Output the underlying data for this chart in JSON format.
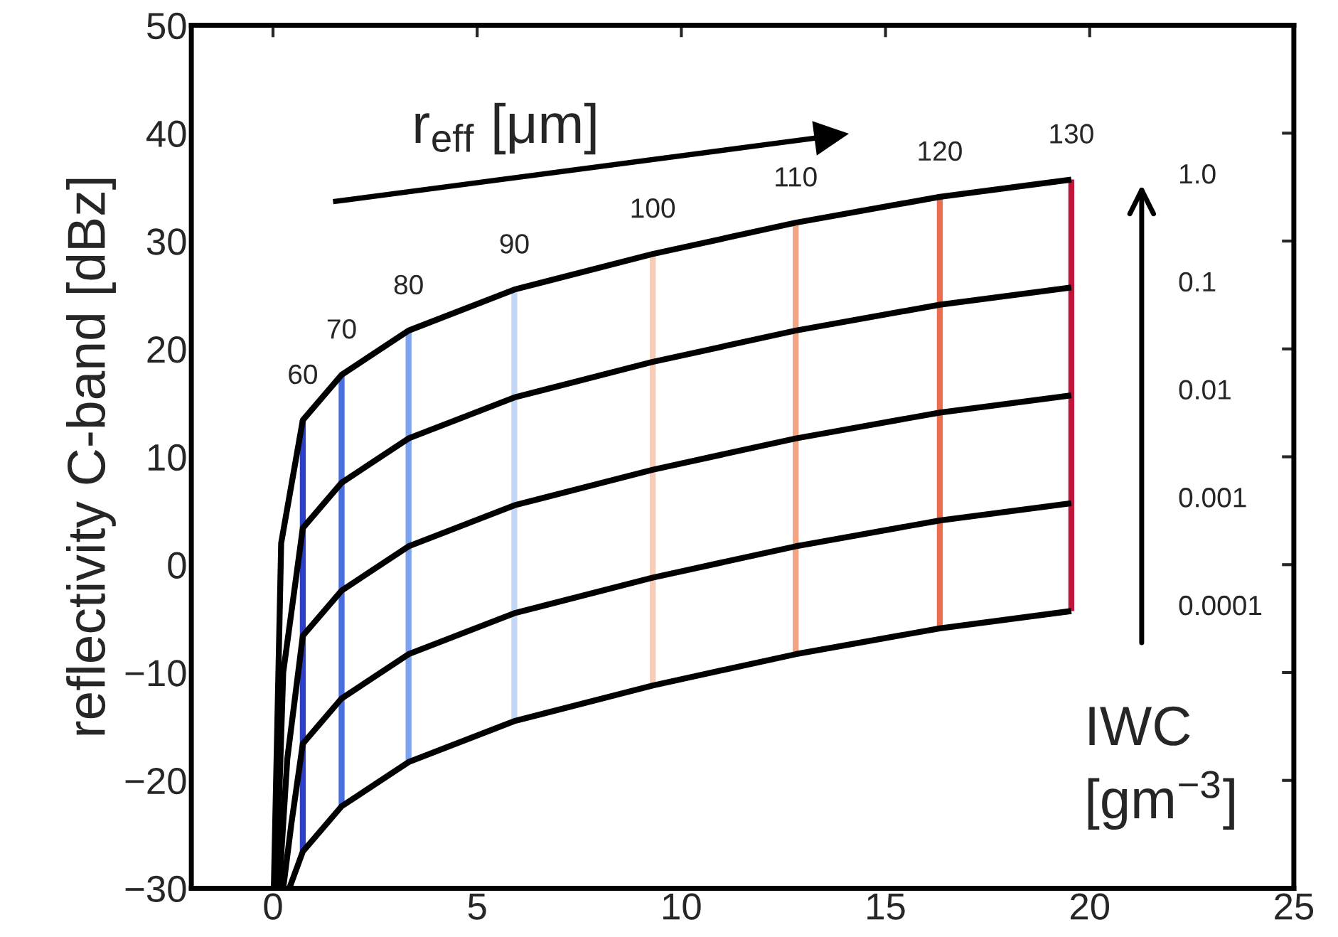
{
  "chart_data": {
    "type": "line",
    "ylabel": "reflectivity C-band [dBz]",
    "annotations": [
      "r$_{eff}$ [μm]",
      "IWC [gm$^{−3}$]",
      "1.0",
      "0.1",
      "0.01",
      "0.001",
      "0.0001",
      {
        "text": "60",
        "x": 0.73,
        "y": 13.4
      },
      {
        "text": "70",
        "x": 1.68,
        "y": 17.6
      },
      {
        "text": "80",
        "x": 3.32,
        "y": 21.7
      },
      {
        "text": "90",
        "x": 5.91,
        "y": 25.5
      },
      {
        "text": "100",
        "x": 9.3,
        "y": 28.8
      },
      {
        "text": "110",
        "x": 12.8,
        "y": 31.7
      },
      {
        "text": "120",
        "x": 16.33,
        "y": 34.1
      },
      {
        "text": "130",
        "x": 19.55,
        "y": 35.7
      }
    ],
    "xlim": [
      -2,
      25
    ],
    "xticks": [
      0,
      5,
      10,
      15,
      20,
      25
    ],
    "ylim": [
      -30,
      50
    ],
    "yticks": [
      {
        "value": -30,
        "label": "−30"
      },
      {
        "value": -20,
        "label": "−20"
      },
      {
        "value": -10,
        "label": "−10"
      },
      0,
      10,
      20,
      30,
      40,
      50
    ],
    "grid": false,
    "legend": false,
    "marker": "none",
    "line_style": "solid",
    "series": [
      {
        "color": "#000000",
        "x": [
          0.02,
          0.2,
          0.73,
          1.68,
          3.32,
          5.91,
          9.3,
          12.8,
          16.33,
          19.55
        ],
        "values": [
          -30,
          2,
          13.4,
          17.6,
          21.7,
          25.5,
          28.8,
          31.7,
          34.1,
          35.7
        ]
      },
      {
        "color": "#000000",
        "x": [
          0.08,
          0.25,
          0.73,
          1.68,
          3.32,
          5.91,
          9.3,
          12.8,
          16.33,
          19.55
        ],
        "values": [
          -30,
          -10,
          3.4,
          7.6,
          11.7,
          15.5,
          18.8,
          21.7,
          24.1,
          25.7
        ]
      },
      {
        "color": "#000000",
        "x": [
          0.15,
          0.35,
          0.73,
          1.68,
          3.32,
          5.91,
          9.3,
          12.8,
          16.33,
          19.55
        ],
        "values": [
          -30,
          -18,
          -6.6,
          -2.4,
          1.7,
          5.5,
          8.8,
          11.7,
          14.1,
          15.7
        ]
      },
      {
        "color": "#000000",
        "x": [
          0.25,
          0.45,
          0.73,
          1.68,
          3.32,
          5.91,
          9.3,
          12.8,
          16.33,
          19.55
        ],
        "values": [
          -30,
          -24,
          -16.6,
          -12.4,
          -8.3,
          -4.5,
          -1.2,
          1.7,
          4.1,
          5.7
        ]
      },
      {
        "color": "#000000",
        "x": [
          0.4,
          0.73,
          1.68,
          3.32,
          5.91,
          9.3,
          12.8,
          16.33,
          19.55
        ],
        "values": [
          -30,
          -26.6,
          -22.4,
          -18.3,
          -14.5,
          -11.2,
          -8.3,
          -5.9,
          -4.3
        ]
      },
      {
        "color": "#2b3fc7",
        "x": [
          0.73,
          0.73
        ],
        "values": [
          -26.6,
          13.4
        ]
      },
      {
        "color": "#4a6ee0",
        "x": [
          1.68,
          1.68
        ],
        "values": [
          -22.4,
          17.6
        ]
      },
      {
        "color": "#7ea4f0",
        "x": [
          3.32,
          3.32
        ],
        "values": [
          -18.3,
          21.7
        ]
      },
      {
        "color": "#c4d6f5",
        "x": [
          5.91,
          5.91
        ],
        "values": [
          -14.5,
          25.5
        ]
      },
      {
        "color": "#f5cdb8",
        "x": [
          9.3,
          9.3
        ],
        "values": [
          -11.2,
          28.8
        ]
      },
      {
        "color": "#f4a383",
        "x": [
          12.8,
          12.8
        ],
        "values": [
          -8.3,
          31.7
        ]
      },
      {
        "color": "#ec6e50",
        "x": [
          16.33,
          16.33
        ],
        "values": [
          -5.9,
          34.1
        ]
      },
      {
        "color": "#c0163a",
        "x": [
          19.55,
          19.55
        ],
        "values": [
          -4.3,
          35.7
        ]
      }
    ]
  }
}
